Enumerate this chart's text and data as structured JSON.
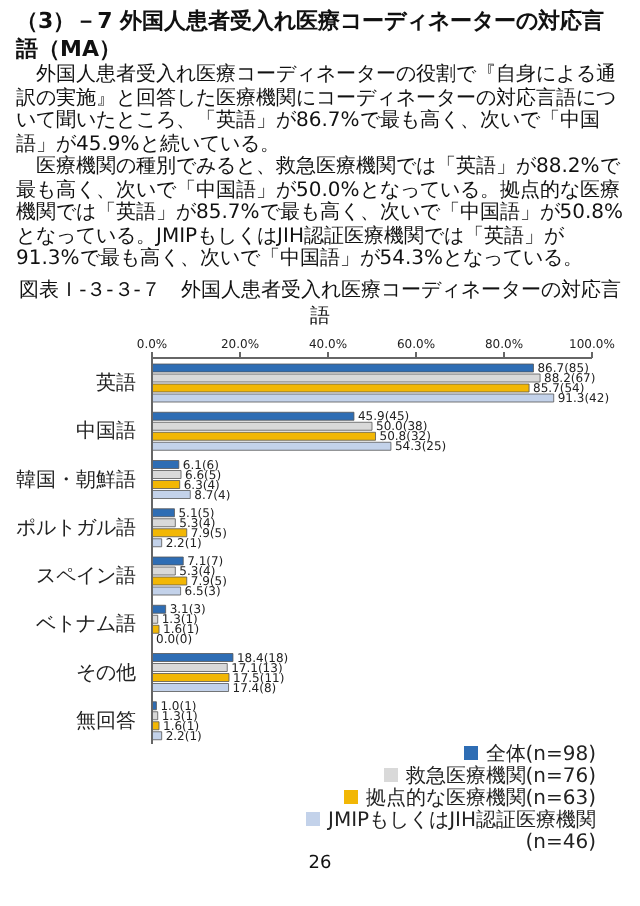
{
  "chart_data": {
    "type": "bar",
    "orientation": "horizontal",
    "title": "（3）－7 外国人患者受入れ医療コーディネーターの対応言語（MA）",
    "subtitle": "図表Ｉ-３-３-７　外国人患者受入れ医療コーディネーターの対応言語",
    "annotations": [
      "外国人患者受入れ医療コーディネーターの役割で『自身による通訳の実施』と回答した医療機関にコーディネーターの対応言語について聞いたところ、「英語」が86.7%で最も高く、次いで「中国語」が45.9%と続いている。",
      "医療機関の種別でみると、救急医療機関では「英語」が88.2%で最も高く、次いで「中国語」が50.0%となっている。拠点的な医療機関では「英語」が85.7%で最も高く、次いで「中国語」が50.8%となっている。JMIPもしくはJIH認証医療機関では「英語」が91.3%で最も高く、次いで「中国語」が54.3%となっている。",
      "26"
    ],
    "categories": [
      "英語",
      "中国語",
      "韓国・朝鮮語",
      "ポルトガル語",
      "スペイン語",
      "ベトナム語",
      "その他",
      "無回答"
    ],
    "series": [
      {
        "name": "全体(n=98)",
        "color": "#2e6db4",
        "values": [
          86.7,
          45.9,
          6.1,
          5.1,
          7.1,
          3.1,
          18.4,
          1.0
        ],
        "value_labels": [
          "86.7(85)",
          "45.9(45)",
          "6.1(6)",
          "5.1(5)",
          "7.1(7)",
          "3.1(3)",
          "18.4(18)",
          "1.0(1)"
        ]
      },
      {
        "name": "救急医療機関(n=76)",
        "color": "#d9d9d9",
        "values": [
          88.2,
          50.0,
          6.6,
          5.3,
          5.3,
          1.3,
          17.1,
          1.3
        ],
        "value_labels": [
          "88.2(67)",
          "50.0(38)",
          "6.6(5)",
          "5.3(4)",
          "5.3(4)",
          "1.3(1)",
          "17.1(13)",
          "1.3(1)"
        ]
      },
      {
        "name": "拠点的な医療機関(n=63)",
        "color": "#f2b705",
        "values": [
          85.7,
          50.8,
          6.3,
          7.9,
          7.9,
          1.6,
          17.5,
          1.6
        ],
        "value_labels": [
          "85.7(54)",
          "50.8(32)",
          "6.3(4)",
          "7.9(5)",
          "7.9(5)",
          "1.6(1)",
          "17.5(11)",
          "1.6(1)"
        ]
      },
      {
        "name": "JMIPもしくはJIH認証医療機関(n=46)",
        "color": "#c3d2ea",
        "values": [
          91.3,
          54.3,
          8.7,
          2.2,
          6.5,
          0.0,
          17.4,
          2.2
        ],
        "value_labels": [
          "91.3(42)",
          "54.3(25)",
          "8.7(4)",
          "2.2(1)",
          "6.5(3)",
          "0.0(0)",
          "17.4(8)",
          "2.2(1)"
        ]
      }
    ],
    "xlim": [
      0,
      100
    ],
    "xticks": [
      {
        "value": 0,
        "label": "0.0%"
      },
      {
        "value": 20,
        "label": "20.0%"
      },
      {
        "value": 40,
        "label": "40.0%"
      },
      {
        "value": 60,
        "label": "60.0%"
      },
      {
        "value": 80,
        "label": "80.0%"
      },
      {
        "value": 100,
        "label": "100.0%"
      }
    ],
    "legend": "bottom right"
  }
}
